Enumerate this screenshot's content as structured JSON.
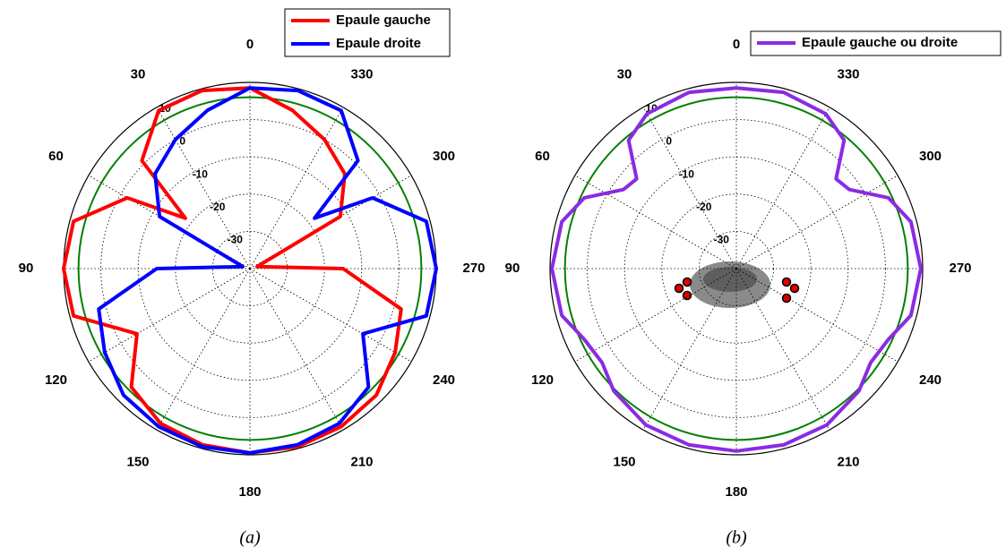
{
  "chart_data": [
    {
      "type": "polar",
      "caption": "(a)",
      "rlim": [
        -40,
        10
      ],
      "rticks": [
        -30,
        -20,
        -10,
        0,
        10
      ],
      "thetaticks": [
        0,
        30,
        60,
        90,
        120,
        150,
        180,
        210,
        240,
        270,
        300,
        330
      ],
      "reference_circle": 6,
      "reference_color": "#008000",
      "grid": true,
      "series": [
        {
          "name": "Epaule gauche",
          "color": "#ff0000",
          "x": [
            0,
            15,
            30,
            45,
            52,
            60,
            75,
            90,
            105,
            120,
            135,
            150,
            165,
            180,
            195,
            210,
            225,
            240,
            255,
            270,
            285,
            300,
            315,
            330,
            345
          ],
          "values": [
            8.5,
            9.5,
            9,
            1,
            -18,
            -2,
            9,
            10,
            9,
            -5,
            5,
            8,
            9,
            9.5,
            9.5,
            9,
            8,
            5,
            2,
            -15,
            -38,
            -12,
            -4,
            0,
            4
          ]
        },
        {
          "name": "Epaule droite",
          "color": "#0000ff",
          "x": [
            0,
            15,
            30,
            45,
            60,
            75,
            90,
            105,
            120,
            135,
            150,
            165,
            180,
            195,
            210,
            225,
            240,
            255,
            270,
            285,
            300,
            308,
            315,
            330,
            345
          ],
          "values": [
            8.5,
            4,
            0,
            -4,
            -12,
            -38,
            -15,
            2,
            5,
            8,
            9,
            9.5,
            9.5,
            9,
            8,
            5,
            -5,
            9,
            10,
            9,
            -2,
            -18,
            1,
            9,
            9.5
          ]
        }
      ]
    },
    {
      "type": "polar",
      "caption": "(b)",
      "rlim": [
        -40,
        10
      ],
      "rticks": [
        -30,
        -20,
        -10,
        0,
        10
      ],
      "thetaticks": [
        0,
        30,
        60,
        90,
        120,
        150,
        180,
        210,
        240,
        270,
        300,
        330
      ],
      "reference_circle": 6,
      "reference_color": "#008000",
      "grid": true,
      "series": [
        {
          "name": "Epaule gauche ou droite",
          "color": "#8a2be2",
          "x": [
            0,
            15,
            30,
            40,
            48,
            55,
            65,
            75,
            90,
            105,
            115,
            125,
            135,
            150,
            165,
            180,
            195,
            210,
            225,
            235,
            245,
            255,
            270,
            285,
            295,
            305,
            312,
            320,
            330,
            345
          ],
          "values": [
            8.5,
            9,
            8,
            5,
            -4,
            -3,
            5,
            8.5,
            9.5,
            8.5,
            5,
            4,
            6.5,
            8.5,
            9,
            9,
            9,
            8.5,
            6.5,
            4,
            5,
            8.5,
            9.5,
            8.5,
            5,
            -3,
            -4,
            5,
            8,
            9
          ]
        }
      ]
    }
  ]
}
